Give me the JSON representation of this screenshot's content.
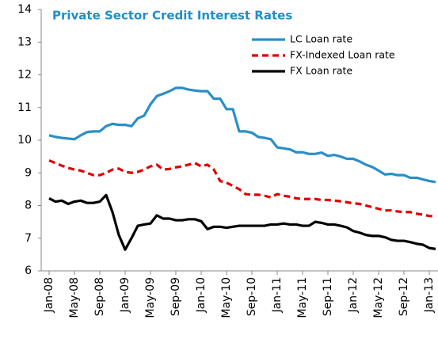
{
  "chart_data": {
    "type": "line",
    "title": "Private Sector Credit Interest Rates",
    "categories": [
      "Jan-08",
      null,
      null,
      null,
      "May-08",
      null,
      null,
      null,
      "Sep-08",
      null,
      null,
      null,
      "Jan-09",
      null,
      null,
      null,
      "May-09",
      null,
      null,
      null,
      "Sep-09",
      null,
      null,
      null,
      "Jan-10",
      null,
      null,
      null,
      "May-10",
      null,
      null,
      null,
      "Sep-10",
      null,
      null,
      null,
      "Jan-11",
      null,
      null,
      null,
      "May-11",
      null,
      null,
      null,
      "Sep-11",
      null,
      null,
      null,
      "Jan-12",
      null,
      null,
      null,
      "May-12",
      null,
      null,
      null,
      "Sep-12",
      null,
      null,
      null,
      "Jan-13",
      null
    ],
    "series": [
      {
        "name": "LC Loan rate",
        "color": "#2a8fc6",
        "style": "solid",
        "values": [
          10.15,
          10.1,
          10.07,
          10.05,
          10.03,
          10.15,
          10.25,
          10.27,
          10.27,
          10.43,
          10.5,
          10.47,
          10.47,
          10.43,
          10.67,
          10.75,
          11.1,
          11.35,
          11.42,
          11.5,
          11.6,
          11.6,
          11.55,
          11.52,
          11.5,
          11.5,
          11.27,
          11.27,
          10.95,
          10.95,
          10.27,
          10.27,
          10.23,
          10.1,
          10.07,
          10.03,
          9.78,
          9.75,
          9.72,
          9.63,
          9.63,
          9.58,
          9.58,
          9.62,
          9.52,
          9.55,
          9.5,
          9.43,
          9.43,
          9.35,
          9.25,
          9.18,
          9.07,
          8.95,
          8.97,
          8.93,
          8.93,
          8.85,
          8.85,
          8.8,
          8.75,
          8.72
        ]
      },
      {
        "name": "FX-Indexed Loan rate",
        "color": "#e00000",
        "style": "dashed",
        "values": [
          9.38,
          9.3,
          9.22,
          9.15,
          9.1,
          9.07,
          9.0,
          8.93,
          8.93,
          9.0,
          9.1,
          9.13,
          9.03,
          9.0,
          9.03,
          9.1,
          9.2,
          9.25,
          9.1,
          9.12,
          9.17,
          9.2,
          9.25,
          9.3,
          9.2,
          9.25,
          9.1,
          8.75,
          8.7,
          8.6,
          8.5,
          8.35,
          8.33,
          8.33,
          8.3,
          8.25,
          8.35,
          8.3,
          8.27,
          8.22,
          8.2,
          8.2,
          8.2,
          8.17,
          8.17,
          8.15,
          8.13,
          8.1,
          8.07,
          8.05,
          8.0,
          7.95,
          7.9,
          7.85,
          7.85,
          7.82,
          7.8,
          7.8,
          7.75,
          7.72,
          7.68,
          7.67
        ]
      },
      {
        "name": "FX Loan rate",
        "color": "#000000",
        "style": "solid",
        "values": [
          8.22,
          8.12,
          8.15,
          8.05,
          8.12,
          8.15,
          8.08,
          8.08,
          8.12,
          8.32,
          7.8,
          7.1,
          6.65,
          7.0,
          7.38,
          7.42,
          7.45,
          7.7,
          7.6,
          7.6,
          7.55,
          7.55,
          7.58,
          7.58,
          7.52,
          7.28,
          7.35,
          7.35,
          7.32,
          7.35,
          7.38,
          7.38,
          7.38,
          7.38,
          7.38,
          7.42,
          7.42,
          7.45,
          7.42,
          7.42,
          7.38,
          7.38,
          7.5,
          7.47,
          7.42,
          7.42,
          7.38,
          7.33,
          7.22,
          7.17,
          7.1,
          7.07,
          7.07,
          7.03,
          6.95,
          6.92,
          6.92,
          6.88,
          6.83,
          6.8,
          6.7,
          6.67
        ]
      }
    ],
    "ylim": [
      6,
      14
    ],
    "yticks": [
      6,
      7,
      8,
      9,
      10,
      11,
      12,
      13,
      14
    ],
    "grid": false,
    "legend": "upper right"
  }
}
